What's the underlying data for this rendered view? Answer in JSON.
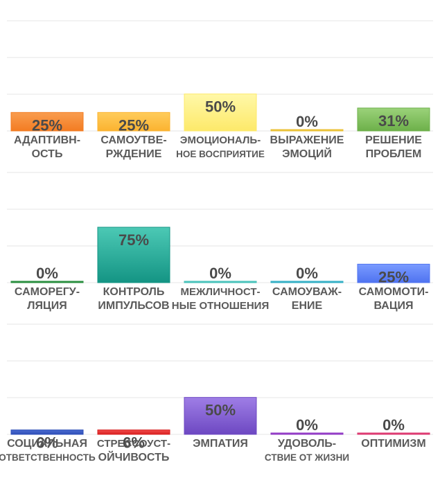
{
  "chart_data": [
    {
      "type": "bar",
      "categories": [
        [
          "АДАПТИВН-",
          "ОСТЬ"
        ],
        [
          "САМОУТВЕ-",
          "РЖДЕНИЕ"
        ],
        [
          "ЭМОЦИОНАЛЬ-",
          "НОЕ ВОСПРИЯТИЕ"
        ],
        [
          "ВЫРАЖЕНИЕ",
          "ЭМОЦИЙ"
        ],
        [
          "РЕШЕНИЕ",
          "ПРОБЛЕМ"
        ]
      ],
      "values": [
        25,
        25,
        50,
        0,
        31
      ],
      "value_labels": [
        "25%",
        "25%",
        "50%",
        "0%",
        "31%"
      ],
      "colors": [
        [
          "#f99d4f",
          "#f37c22"
        ],
        [
          "#ffcc5c",
          "#fbb330"
        ],
        [
          "#fff8a8",
          "#fde96a"
        ],
        [
          "#f5d35a",
          "#e8be2e"
        ],
        [
          "#9bd27a",
          "#6db04a"
        ]
      ],
      "ylim": [
        0,
        150
      ],
      "grid": true
    },
    {
      "type": "bar",
      "categories": [
        [
          "САМОРЕГУ-",
          "ЛЯЦИЯ"
        ],
        [
          "КОНТРОЛЬ",
          "ИМПУЛЬСОВ"
        ],
        [
          "МЕЖЛИЧНОСТ-",
          "НЫЕ ОТНОШЕНИЯ"
        ],
        [
          "САМОУВАЖ-",
          "ЕНИЕ"
        ],
        [
          "САМОМОТИ-",
          "ВАЦИЯ"
        ]
      ],
      "values": [
        0,
        75,
        0,
        0,
        25
      ],
      "value_labels": [
        "0%",
        "75%",
        "0%",
        "0%",
        "25%"
      ],
      "colors": [
        [
          "#3aa350",
          "#24893a"
        ],
        [
          "#4cc9b5",
          "#149484"
        ],
        [
          "#6fd6cf",
          "#3fbdb5"
        ],
        [
          "#5ac9da",
          "#2aa9c0"
        ],
        [
          "#7a9bff",
          "#4f73f0"
        ]
      ],
      "ylim": [
        0,
        150
      ],
      "grid": true
    },
    {
      "type": "bar",
      "categories": [
        [
          "СОЦИАЛЬНАЯ",
          "ОТВЕТСТВЕННОСТЬ"
        ],
        [
          "СТРЕССОУСТ-",
          "ОЙЧИВОСТЬ"
        ],
        [
          "ЭМПАТИЯ"
        ],
        [
          "УДОВОЛЬ-",
          "СТВИЕ ОТ ЖИЗНИ"
        ],
        [
          "ОПТИМИЗМ"
        ]
      ],
      "values": [
        6,
        6,
        50,
        0,
        0
      ],
      "value_labels": [
        "6%",
        "6%",
        "50%",
        "0%",
        "0%"
      ],
      "colors": [
        [
          "#4a6ad0",
          "#2f4fb8"
        ],
        [
          "#f24c4c",
          "#d82020"
        ],
        [
          "#9f7ee6",
          "#6d48c2"
        ],
        [
          "#b05ad8",
          "#8a32c0"
        ],
        [
          "#f05a8a",
          "#d8306a"
        ]
      ],
      "ylim": [
        0,
        150
      ],
      "grid": true
    }
  ]
}
